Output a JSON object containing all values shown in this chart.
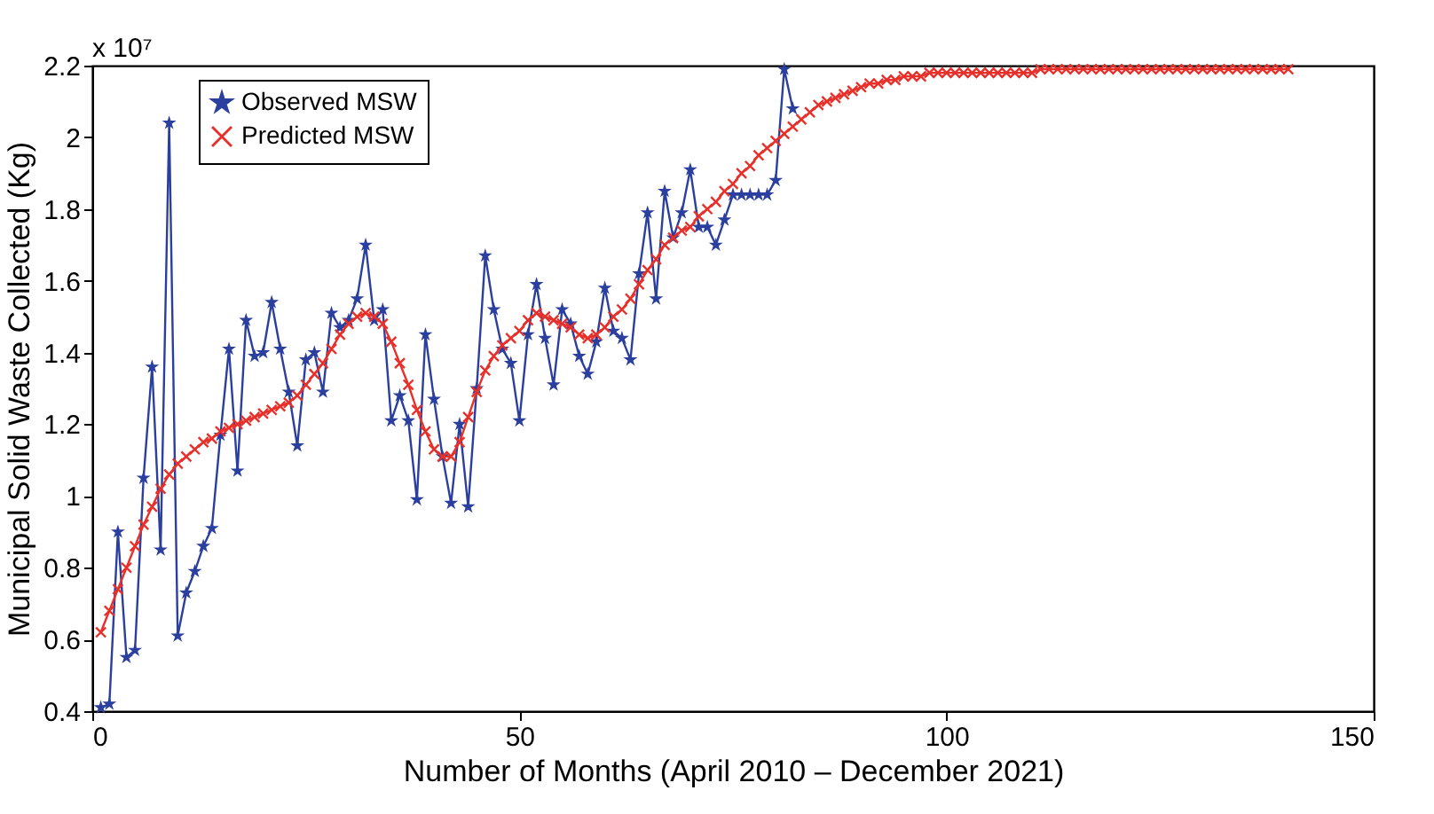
{
  "chart_data": {
    "type": "line",
    "xlabel": "Number of Months (April 2010 – December 2021)",
    "ylabel": "Municipal Solid Waste Collected (Kg)",
    "annotations": [
      "x 10⁷"
    ],
    "xlim": [
      0,
      150
    ],
    "xticks": [
      0,
      50,
      100,
      150
    ],
    "ylim": [
      0.4,
      2.2
    ],
    "yticks": [
      0.4,
      0.6,
      0.8,
      1,
      1.2,
      1.4,
      1.6,
      1.8,
      2,
      2.2
    ],
    "grid": false,
    "legend": "top left",
    "line_style": "solid",
    "series": [
      {
        "name": "Observed MSW",
        "color": "#2b3f9e",
        "marker": "star",
        "x": [
          1,
          2,
          3,
          4,
          5,
          6,
          7,
          8,
          9,
          10,
          11,
          12,
          13,
          14,
          15,
          16,
          17,
          18,
          19,
          20,
          21,
          22,
          23,
          24,
          25,
          26,
          27,
          28,
          29,
          30,
          31,
          32,
          33,
          34,
          35,
          36,
          37,
          38,
          39,
          40,
          41,
          42,
          43,
          44,
          45,
          46,
          47,
          48,
          49,
          50,
          51,
          52,
          53,
          54,
          55,
          56,
          57,
          58,
          59,
          60,
          61,
          62,
          63,
          64,
          65,
          66,
          67,
          68,
          69,
          70,
          71,
          72,
          73,
          74,
          75,
          76,
          77,
          78,
          79,
          80,
          81,
          82
        ],
        "values": [
          0.41,
          0.42,
          0.9,
          0.55,
          0.57,
          1.05,
          1.36,
          0.85,
          2.04,
          0.61,
          0.73,
          0.79,
          0.86,
          0.91,
          1.17,
          1.41,
          1.07,
          1.49,
          1.39,
          1.4,
          1.54,
          1.41,
          1.29,
          1.14,
          1.38,
          1.4,
          1.29,
          1.51,
          1.47,
          1.49,
          1.55,
          1.7,
          1.49,
          1.52,
          1.21,
          1.28,
          1.21,
          0.99,
          1.45,
          1.27,
          1.11,
          0.98,
          1.2,
          0.97,
          1.3,
          1.67,
          1.52,
          1.41,
          1.37,
          1.21,
          1.45,
          1.59,
          1.44,
          1.31,
          1.52,
          1.48,
          1.39,
          1.34,
          1.43,
          1.58,
          1.46,
          1.44,
          1.38,
          1.62,
          1.79,
          1.55,
          1.85,
          1.72,
          1.79,
          1.91,
          1.75,
          1.75,
          1.7,
          1.77,
          1.84,
          1.84,
          1.84,
          1.84,
          1.84,
          1.88,
          2.19,
          2.08
        ]
      },
      {
        "name": "Predicted MSW",
        "color": "#e8302a",
        "marker": "cross",
        "x": [
          1,
          2,
          3,
          4,
          5,
          6,
          7,
          8,
          9,
          10,
          11,
          12,
          13,
          14,
          15,
          16,
          17,
          18,
          19,
          20,
          21,
          22,
          23,
          24,
          25,
          26,
          27,
          28,
          29,
          30,
          31,
          32,
          33,
          34,
          35,
          36,
          37,
          38,
          39,
          40,
          41,
          42,
          43,
          44,
          45,
          46,
          47,
          48,
          49,
          50,
          51,
          52,
          53,
          54,
          55,
          56,
          57,
          58,
          59,
          60,
          61,
          62,
          63,
          64,
          65,
          66,
          67,
          68,
          69,
          70,
          71,
          72,
          73,
          74,
          75,
          76,
          77,
          78,
          79,
          80,
          81,
          82,
          83,
          84,
          85,
          86,
          87,
          88,
          89,
          90,
          91,
          92,
          93,
          94,
          95,
          96,
          97,
          98,
          99,
          100,
          101,
          102,
          103,
          104,
          105,
          106,
          107,
          108,
          109,
          110,
          111,
          112,
          113,
          114,
          115,
          116,
          117,
          118,
          119,
          120,
          121,
          122,
          123,
          124,
          125,
          126,
          127,
          128,
          129,
          130,
          131,
          132,
          133,
          134,
          135,
          136,
          137,
          138,
          139,
          140
        ],
        "values": [
          0.62,
          0.68,
          0.74,
          0.8,
          0.86,
          0.92,
          0.97,
          1.02,
          1.06,
          1.09,
          1.11,
          1.13,
          1.15,
          1.16,
          1.18,
          1.19,
          1.2,
          1.21,
          1.22,
          1.23,
          1.24,
          1.25,
          1.26,
          1.28,
          1.31,
          1.34,
          1.37,
          1.41,
          1.45,
          1.48,
          1.5,
          1.51,
          1.5,
          1.48,
          1.43,
          1.37,
          1.31,
          1.24,
          1.18,
          1.13,
          1.11,
          1.11,
          1.15,
          1.22,
          1.29,
          1.35,
          1.39,
          1.42,
          1.44,
          1.46,
          1.49,
          1.51,
          1.5,
          1.49,
          1.48,
          1.47,
          1.45,
          1.44,
          1.45,
          1.47,
          1.5,
          1.52,
          1.55,
          1.59,
          1.63,
          1.66,
          1.7,
          1.72,
          1.74,
          1.75,
          1.78,
          1.8,
          1.82,
          1.85,
          1.87,
          1.9,
          1.92,
          1.95,
          1.97,
          1.99,
          2.01,
          2.03,
          2.05,
          2.07,
          2.09,
          2.1,
          2.11,
          2.12,
          2.13,
          2.14,
          2.15,
          2.15,
          2.16,
          2.16,
          2.17,
          2.17,
          2.17,
          2.18,
          2.18,
          2.18,
          2.18,
          2.18,
          2.18,
          2.18,
          2.18,
          2.18,
          2.18,
          2.18,
          2.18,
          2.18,
          2.19,
          2.19,
          2.19,
          2.19,
          2.19,
          2.19,
          2.19,
          2.19,
          2.19,
          2.19,
          2.19,
          2.19,
          2.19,
          2.19,
          2.19,
          2.19,
          2.19,
          2.19,
          2.19,
          2.19,
          2.19,
          2.19,
          2.19,
          2.19,
          2.19,
          2.19,
          2.19,
          2.19,
          2.19,
          2.19
        ]
      }
    ]
  }
}
